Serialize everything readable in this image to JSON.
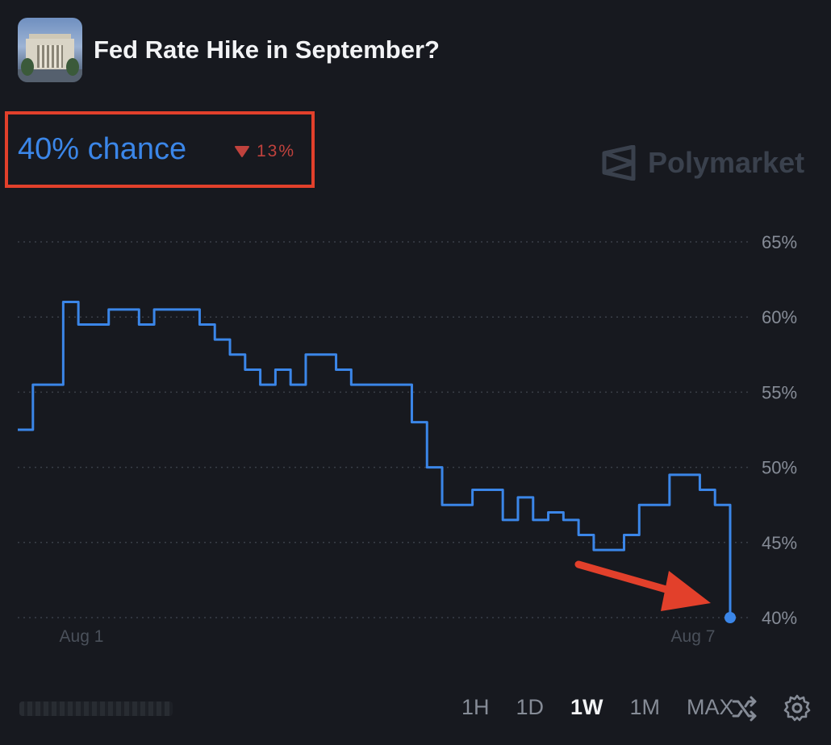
{
  "header": {
    "title": "Fed Rate Hike in September?"
  },
  "summary": {
    "chance": "40% chance",
    "change": "13%",
    "change_direction": "down"
  },
  "brand": {
    "name": "Polymarket",
    "icon": "polymarket-logo-icon"
  },
  "colors": {
    "line": "#3b86e8",
    "down": "#c0423d",
    "annotation": "#e2402b",
    "background": "#17191f"
  },
  "range_buttons": [
    {
      "label": "1H",
      "active": false
    },
    {
      "label": "1D",
      "active": false
    },
    {
      "label": "1W",
      "active": true
    },
    {
      "label": "1M",
      "active": false
    },
    {
      "label": "MAX",
      "active": false
    }
  ],
  "controls": {
    "shuffle_icon": "shuffle-icon",
    "settings_icon": "gear-icon"
  },
  "chart_data": {
    "type": "line",
    "title": "",
    "xlabel": "",
    "ylabel": "",
    "x_ticks": [
      "Aug 1",
      "Aug 7"
    ],
    "y_ticks": [
      "65%",
      "60%",
      "55%",
      "50%",
      "45%",
      "40%"
    ],
    "ylim": [
      40,
      65
    ],
    "grid": "horizontal dotted",
    "series": [
      {
        "values": [
          52.5,
          55.5,
          55.5,
          61,
          59.5,
          59.5,
          60.5,
          60.5,
          59.5,
          60.5,
          60.5,
          60.5,
          59.5,
          58.5,
          57.5,
          56.5,
          55.5,
          56.5,
          55.5,
          57.5,
          57.5,
          56.5,
          55.5,
          55.5,
          55.5,
          55.5,
          53,
          50,
          47.5,
          47.5,
          48.5,
          48.5,
          46.5,
          48,
          46.5,
          47,
          46.5,
          45.5,
          44.5,
          44.5,
          45.5,
          47.5,
          47.5,
          49.5,
          49.5,
          48.5,
          47.5,
          40
        ]
      }
    ],
    "annotation": "arrow pointing to latest value 40%"
  }
}
